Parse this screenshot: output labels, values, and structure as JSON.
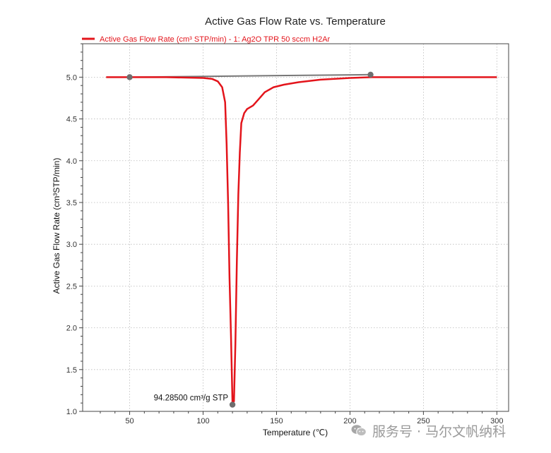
{
  "chart_data": {
    "type": "line",
    "title": "Active Gas Flow Rate vs. Temperature",
    "xlabel": "Temperature (℃)",
    "ylabel": "Active Gas Flow Rate (cm³STP/min)",
    "xlim": [
      18,
      308
    ],
    "ylim": [
      1.0,
      5.4
    ],
    "x_ticks": [
      50,
      100,
      150,
      200,
      250,
      300
    ],
    "x_tick_labels": [
      "50",
      "100",
      "150",
      "200",
      "250",
      "300"
    ],
    "y_ticks": [
      1.0,
      1.5,
      2.0,
      2.5,
      3.0,
      3.5,
      4.0,
      4.5,
      5.0
    ],
    "y_tick_labels": [
      "1.0",
      "1.5",
      "2.0",
      "2.5",
      "3.0",
      "3.5",
      "4.0",
      "4.5",
      "5.0"
    ],
    "grid": true,
    "legend_position": "top-left",
    "series": [
      {
        "name": "Active Gas Flow Rate (cm³ STP/min) - 1: Ag2O TPR 50 sccm H2Ar",
        "color": "#e3141b",
        "points": [
          [
            34,
            5.0
          ],
          [
            50,
            5.0
          ],
          [
            75,
            5.0
          ],
          [
            100,
            4.99
          ],
          [
            106,
            4.98
          ],
          [
            110,
            4.95
          ],
          [
            113,
            4.88
          ],
          [
            115,
            4.7
          ],
          [
            116,
            4.2
          ],
          [
            117,
            3.5
          ],
          [
            118,
            2.6
          ],
          [
            119,
            1.9
          ],
          [
            120,
            1.1
          ],
          [
            121,
            1.12
          ],
          [
            122,
            1.8
          ],
          [
            123,
            2.8
          ],
          [
            124,
            3.6
          ],
          [
            125,
            4.1
          ],
          [
            126,
            4.45
          ],
          [
            128,
            4.57
          ],
          [
            130,
            4.62
          ],
          [
            134,
            4.66
          ],
          [
            138,
            4.74
          ],
          [
            142,
            4.82
          ],
          [
            148,
            4.88
          ],
          [
            155,
            4.91
          ],
          [
            165,
            4.94
          ],
          [
            180,
            4.97
          ],
          [
            200,
            4.99
          ],
          [
            215,
            5.0
          ],
          [
            250,
            5.0
          ],
          [
            300,
            5.0
          ]
        ]
      }
    ],
    "baseline": {
      "color": "#777777",
      "points": [
        [
          50,
          5.0
        ],
        [
          214,
          5.03
        ]
      ]
    },
    "markers": [
      {
        "name": "baseline-start-marker",
        "x": 50,
        "y": 5.0
      },
      {
        "name": "baseline-end-marker",
        "x": 214,
        "y": 5.03
      },
      {
        "name": "peak-marker",
        "x": 120,
        "y": 1.08
      }
    ],
    "annotations": [
      {
        "text": "94.28500 cm³/g STP",
        "x": 120,
        "y": 1.08
      }
    ]
  },
  "watermark": {
    "text": "服务号 · 马尔文帆纳科",
    "icon": "wechat-icon"
  }
}
